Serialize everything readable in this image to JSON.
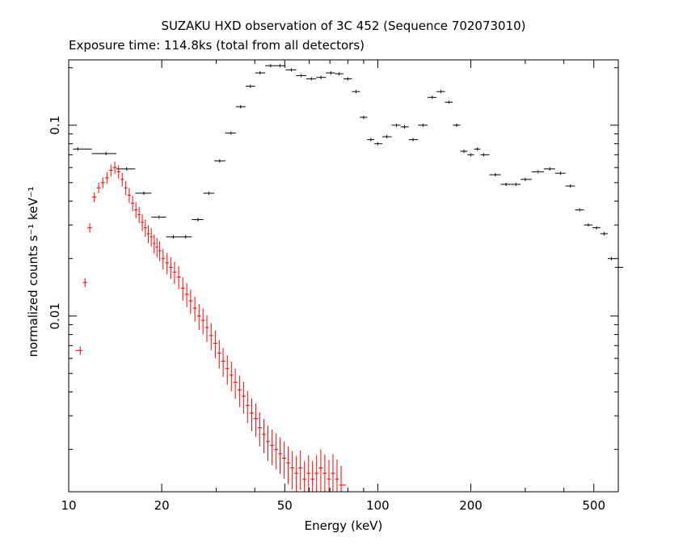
{
  "chart_data": {
    "type": "scatter",
    "title": "SUZAKU HXD observation of 3C 452 (Sequence 702073010)",
    "subtitle": "Exposure time: 114.8ks (total from all detectors)",
    "xlabel": "Energy (keV)",
    "ylabel": "normalized counts s⁻¹ keV⁻¹",
    "x_scale": "log",
    "y_scale": "log",
    "xlim": [
      10,
      600
    ],
    "ylim": [
      0.0012,
      0.22
    ],
    "x_ticks": [
      10,
      20,
      50,
      100,
      200,
      500
    ],
    "x_tick_labels": [
      "10",
      "20",
      "50",
      "100",
      "200",
      "500"
    ],
    "y_ticks": [
      0.01,
      0.1
    ],
    "y_tick_labels": [
      "0.01",
      "0.1"
    ],
    "grid": false,
    "legend": "none",
    "series": [
      {
        "color": "#000000",
        "x": [
          10.7,
          13.2,
          15.4,
          17.5,
          19.6,
          21.8,
          23.9,
          26.2,
          28.4,
          30.8,
          33.5,
          36.0,
          38.7,
          41.6,
          45.0,
          48.3,
          52.5,
          56.5,
          61.0,
          65.5,
          70.5,
          75.0,
          80.0,
          85.0,
          90.0,
          95.0,
          100.0,
          107.0,
          115.0,
          122.0,
          130.0,
          140.0,
          150.0,
          160.0,
          170.0,
          180.0,
          190.0,
          200.0,
          210.0,
          220.0,
          240.0,
          260.0,
          280.0,
          300.0,
          330.0,
          360.0,
          390.0,
          420.0,
          450.0,
          480.0,
          510.0,
          540.0,
          570.0,
          600.0
        ],
        "y": [
          0.075,
          0.071,
          0.059,
          0.044,
          0.033,
          0.026,
          0.026,
          0.032,
          0.044,
          0.065,
          0.091,
          0.125,
          0.16,
          0.188,
          0.205,
          0.205,
          0.195,
          0.182,
          0.175,
          0.178,
          0.188,
          0.186,
          0.175,
          0.15,
          0.11,
          0.084,
          0.08,
          0.087,
          0.1,
          0.098,
          0.084,
          0.1,
          0.14,
          0.15,
          0.132,
          0.1,
          0.073,
          0.07,
          0.075,
          0.07,
          0.055,
          0.049,
          0.049,
          0.052,
          0.057,
          0.059,
          0.056,
          0.048,
          0.036,
          0.03,
          0.029,
          0.027,
          0.02,
          0.018
        ]
      },
      {
        "color": "#ff0000",
        "x": [
          10.9,
          11.3,
          11.7,
          12.1,
          12.5,
          12.9,
          13.3,
          13.7,
          14.1,
          14.5,
          14.9,
          15.3,
          15.7,
          16.1,
          16.5,
          16.9,
          17.3,
          17.7,
          18.1,
          18.5,
          18.9,
          19.3,
          19.7,
          20.2,
          20.8,
          21.4,
          22.0,
          22.7,
          23.4,
          24.1,
          24.8,
          25.6,
          26.4,
          27.2,
          28.0,
          28.9,
          29.8,
          30.7,
          31.6,
          32.6,
          33.6,
          34.6,
          35.7,
          36.8,
          37.9,
          39.1,
          40.3,
          41.5,
          42.8,
          44.1,
          45.5,
          46.9,
          48.3,
          49.8,
          51.3,
          52.9,
          54.5,
          56.2,
          57.9,
          59.7,
          61.5,
          63.4,
          65.4,
          67.4,
          69.5,
          71.6,
          73.8,
          76.1
        ],
        "y": [
          0.0066,
          0.015,
          0.029,
          0.042,
          0.047,
          0.05,
          0.053,
          0.058,
          0.06,
          0.057,
          0.052,
          0.047,
          0.043,
          0.039,
          0.036,
          0.034,
          0.031,
          0.029,
          0.027,
          0.026,
          0.024,
          0.023,
          0.022,
          0.02,
          0.019,
          0.018,
          0.017,
          0.016,
          0.014,
          0.013,
          0.012,
          0.011,
          0.01,
          0.0095,
          0.0087,
          0.0079,
          0.0072,
          0.0064,
          0.0058,
          0.0053,
          0.0049,
          0.0045,
          0.0041,
          0.0038,
          0.0034,
          0.0031,
          0.0029,
          0.0026,
          0.0024,
          0.0022,
          0.0021,
          0.002,
          0.0019,
          0.0018,
          0.0017,
          0.0016,
          0.0015,
          0.0016,
          0.0014,
          0.0015,
          0.0014,
          0.0015,
          0.0016,
          0.0015,
          0.0014,
          0.0015,
          0.0014,
          0.0013
        ]
      }
    ]
  }
}
